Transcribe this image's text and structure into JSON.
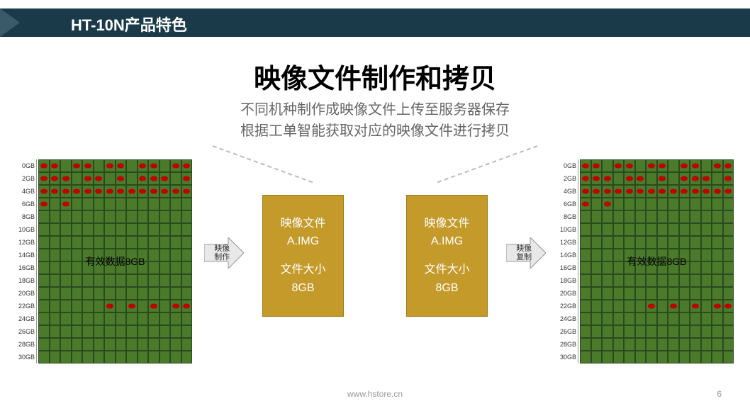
{
  "header": {
    "title": "HT-10N产品特色"
  },
  "title": "映像文件制作和拷贝",
  "subtitle_line1": "不同机种制作成映像文件上传至服务器保存",
  "subtitle_line2": "根据工单智能获取对应的映像文件进行拷贝",
  "disk": {
    "row_labels": [
      "0GB",
      "2GB",
      "4GB",
      "6GB",
      "8GB",
      "10GB",
      "12GB",
      "14GB",
      "16GB",
      "18GB",
      "20GB",
      "22GB",
      "24GB",
      "26GB",
      "28GB",
      "30GB"
    ],
    "cols": 14,
    "dot_rows": {
      "0": [
        1,
        1,
        0,
        1,
        1,
        0,
        1,
        1,
        0,
        1,
        1,
        0,
        1,
        1
      ],
      "1": [
        1,
        1,
        1,
        0,
        1,
        1,
        0,
        1,
        0,
        1,
        1,
        1,
        0,
        1
      ],
      "2": [
        1,
        1,
        1,
        1,
        1,
        1,
        1,
        1,
        1,
        1,
        1,
        1,
        1,
        1
      ],
      "3": [
        1,
        0,
        1,
        0,
        0,
        0,
        0,
        0,
        0,
        0,
        0,
        0,
        0,
        0
      ],
      "11": [
        0,
        0,
        0,
        0,
        0,
        0,
        1,
        0,
        1,
        0,
        1,
        0,
        1,
        1
      ]
    },
    "eff_label": "有效数据8GB",
    "data_cell_color": "#4a7a2a",
    "empty_cell_color": "#6a9a4a",
    "dot_color": "#c00000",
    "border_color": "#2a4a20"
  },
  "arrow_left_label_1": "映像",
  "arrow_left_label_2": "制作",
  "arrow_right_label_1": "映像",
  "arrow_right_label_2": "复制",
  "imgbox": {
    "line1": "映像文件",
    "line2": "A.IMG",
    "line3": "文件大小",
    "line4": "8GB",
    "bg": "#c49a2a"
  },
  "footer": {
    "url": "www.hstore.cn",
    "page": "6"
  },
  "colors": {
    "header_bg": "#1a3a4a",
    "header_chevron": "#3a5a6a"
  }
}
